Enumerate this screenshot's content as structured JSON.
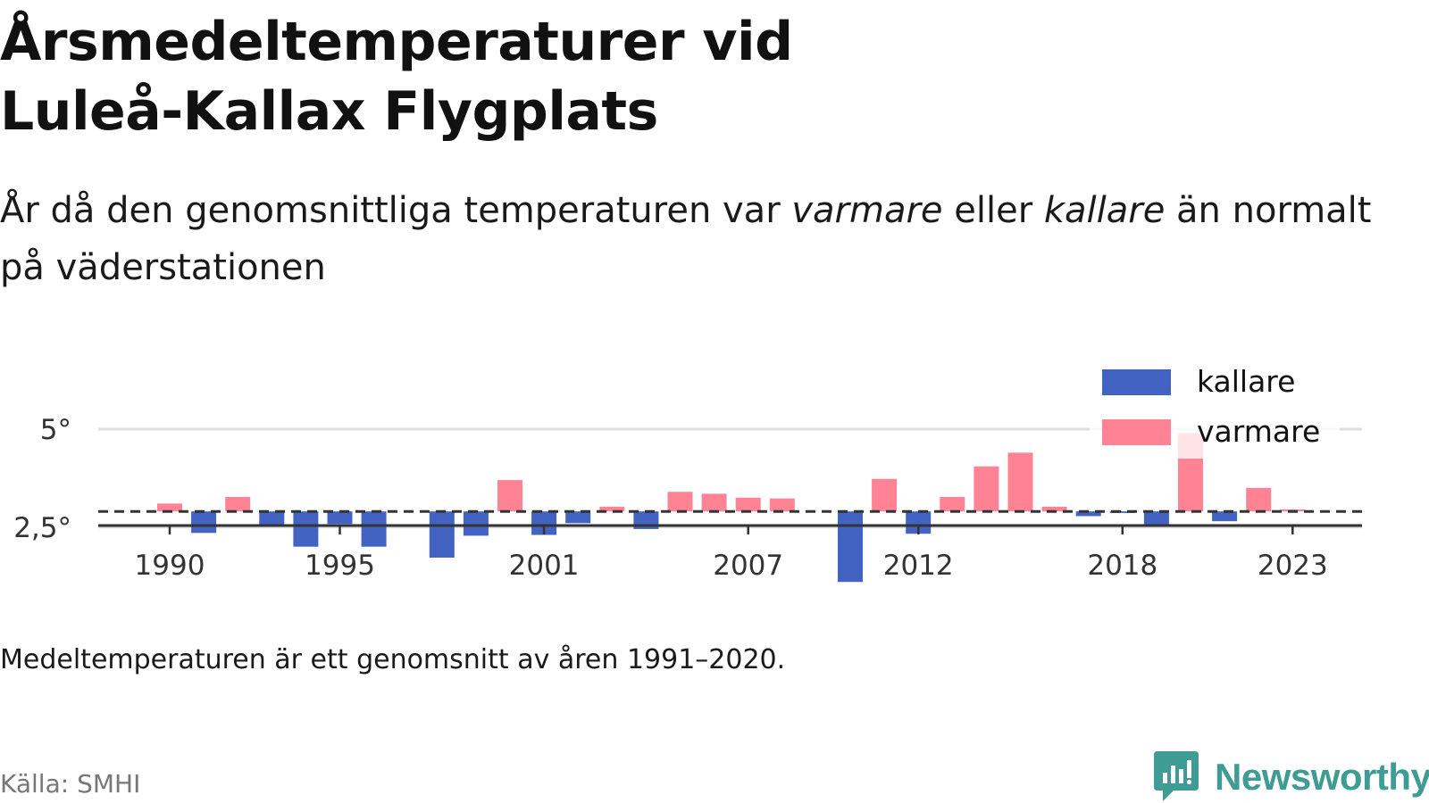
{
  "title_line1": "Årsmedeltemperaturer vid",
  "title_line2": "Luleå-Kallax Flygplats",
  "subtitle": {
    "part1": "År då den genomsnittliga temperaturen var ",
    "warm_word": "varmare",
    "part2": " eller ",
    "cold_word": "kallare",
    "part3": " än normalt på väderstationen"
  },
  "note": "Medeltemperaturen är ett genomsnitt av åren 1991–2020.",
  "source": "Källa: SMHI",
  "brand": "Newsworthy",
  "colors": {
    "cold": "#4263c2",
    "warm": "#ff8394",
    "brand": "#3e9c95"
  },
  "chart_data": {
    "type": "bar",
    "baseline": 2.9,
    "ylim": [
      1,
      5.4
    ],
    "y_ticks": [
      2.5,
      5
    ],
    "y_tick_labels": [
      "2,5°",
      "5°"
    ],
    "x_ticks": [
      1990,
      1995,
      2001,
      2007,
      2012,
      2018,
      2023
    ],
    "x_tick_labels": [
      "1990",
      "1995",
      "2001",
      "2007",
      "2012",
      "2018",
      "2023"
    ],
    "legend": {
      "position": "top-right",
      "items": [
        {
          "label": "kallare",
          "color": "#4263c2"
        },
        {
          "label": "varmare",
          "color": "#ff8394"
        }
      ]
    },
    "years": [
      1990,
      1991,
      1992,
      1993,
      1994,
      1995,
      1996,
      1997,
      1998,
      1999,
      2000,
      2001,
      2002,
      2003,
      2004,
      2005,
      2006,
      2007,
      2008,
      2009,
      2010,
      2011,
      2012,
      2013,
      2014,
      2015,
      2016,
      2017,
      2018,
      2019,
      2020,
      2021,
      2022,
      2023
    ],
    "values": [
      3.1,
      2.35,
      3.27,
      2.55,
      2.0,
      2.58,
      2.0,
      null,
      1.72,
      2.28,
      3.7,
      2.3,
      2.6,
      3.02,
      2.45,
      3.4,
      3.35,
      3.25,
      3.23,
      null,
      1.1,
      3.73,
      2.33,
      3.27,
      4.05,
      4.4,
      3.02,
      2.78,
      2.86,
      2.55,
      4.9,
      2.65,
      3.5,
      2.95
    ]
  }
}
